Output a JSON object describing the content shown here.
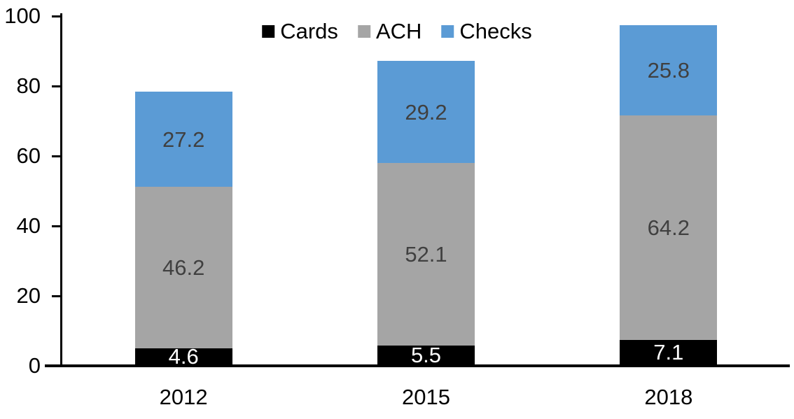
{
  "chart_data": {
    "type": "bar",
    "stacked": true,
    "title": "",
    "xlabel": "",
    "ylabel": "",
    "categories": [
      "2012",
      "2015",
      "2018"
    ],
    "series": [
      {
        "name": "Cards",
        "color": "#000000",
        "label_color": "#FFFFFF",
        "values": [
          4.6,
          5.5,
          7.1
        ]
      },
      {
        "name": "ACH",
        "color": "#A5A5A5",
        "label_color": "#404040",
        "values": [
          46.2,
          52.1,
          64.2
        ]
      },
      {
        "name": "Checks",
        "color": "#5B9BD5",
        "label_color": "#404040",
        "values": [
          27.2,
          29.2,
          25.8
        ]
      }
    ],
    "y_ticks": [
      0,
      20,
      40,
      60,
      80,
      100
    ],
    "ylim": [
      0,
      100
    ],
    "grid": false,
    "legend_position": "top-center",
    "axis_color": "#000000",
    "background_color": "#FFFFFF",
    "value_label_decimals": 1
  }
}
